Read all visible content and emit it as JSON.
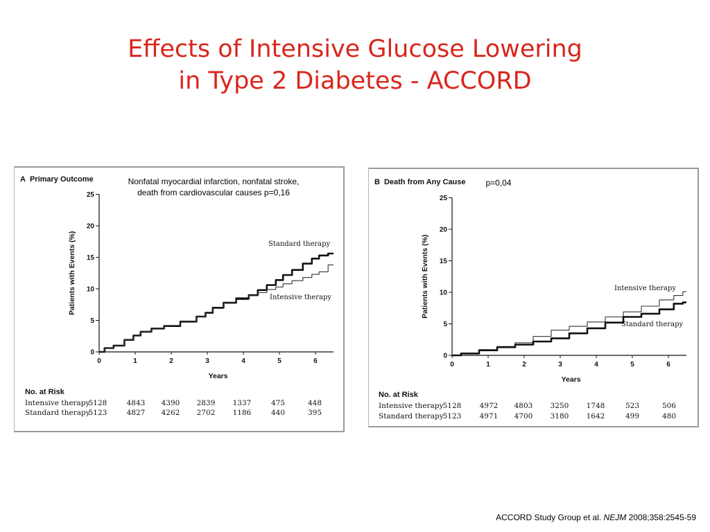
{
  "title_line1": "Effects of Intensive Glucose Lowering",
  "title_line2": "in Type 2 Diabetes - ACCORD",
  "citation": {
    "authors": "ACCORD Study Group  et al.",
    "journal": "NEJM",
    "ref": "2008;358:2545-59"
  },
  "chart_data": [
    {
      "type": "line",
      "panel_letter": "A",
      "panel_title": "Primary Outcome",
      "annotation_line1": "Nonfatal myocardial infarction, nonfatal stroke,",
      "annotation_line2": "death from cardiovascular causes  p=0,16",
      "xlabel": "Years",
      "ylabel": "Patients with Events (%)",
      "xlim": [
        0,
        6.5
      ],
      "ylim": [
        0,
        25
      ],
      "xticks": [
        "0",
        "1",
        "2",
        "3",
        "4",
        "5",
        "6"
      ],
      "yticks": [
        "0",
        "5",
        "10",
        "15",
        "20",
        "25"
      ],
      "series": [
        {
          "name": "Standard therapy",
          "color": "#111111",
          "weight": "thick",
          "x": [
            0,
            0.3,
            0.5,
            0.9,
            1.0,
            1.3,
            1.6,
            2.0,
            2.5,
            2.9,
            3.0,
            3.3,
            3.6,
            4.0,
            4.3,
            4.5,
            4.8,
            5.0,
            5.2,
            5.5,
            5.8,
            6.0,
            6.2,
            6.5
          ],
          "y": [
            0,
            0.6,
            1.0,
            1.9,
            2.6,
            3.2,
            3.7,
            4.1,
            4.8,
            5.6,
            6.2,
            7.0,
            7.8,
            8.5,
            9.0,
            9.8,
            10.6,
            11.4,
            12.2,
            13.0,
            14.0,
            14.8,
            15.3,
            15.6
          ]
        },
        {
          "name": "Intensive therapy",
          "color": "#333333",
          "weight": "thin",
          "x": [
            0,
            0.3,
            0.5,
            0.9,
            1.0,
            1.3,
            1.6,
            2.0,
            2.5,
            2.9,
            3.0,
            3.3,
            3.6,
            4.0,
            4.3,
            4.5,
            4.8,
            5.0,
            5.2,
            5.5,
            5.8,
            6.0,
            6.2,
            6.5
          ],
          "y": [
            0,
            0.6,
            1.0,
            1.9,
            2.6,
            3.2,
            3.7,
            4.2,
            4.9,
            5.6,
            6.1,
            6.9,
            7.7,
            8.3,
            8.9,
            9.4,
            9.9,
            10.3,
            10.8,
            11.3,
            11.8,
            12.3,
            12.7,
            13.8
          ]
        }
      ],
      "risk_header": "No. at Risk",
      "risk_rows": [
        {
          "label": "Intensive therapy",
          "values": [
            "5128",
            "4843",
            "4390",
            "2839",
            "1337",
            "475",
            "448"
          ]
        },
        {
          "label": "Standard therapy",
          "values": [
            "5123",
            "4827",
            "4262",
            "2702",
            "1186",
            "440",
            "395"
          ]
        }
      ]
    },
    {
      "type": "line",
      "panel_letter": "B",
      "panel_title": "Death from Any Cause",
      "annotation_line1": "p=0,04",
      "annotation_line2": "",
      "xlabel": "Years",
      "ylabel": "Patients with Events (%)",
      "xlim": [
        0,
        6.5
      ],
      "ylim": [
        0,
        25
      ],
      "xticks": [
        "0",
        "1",
        "2",
        "3",
        "4",
        "5",
        "6"
      ],
      "yticks": [
        "0",
        "5",
        "10",
        "15",
        "20",
        "25"
      ],
      "series": [
        {
          "name": "Intensive therapy",
          "color": "#333333",
          "weight": "thin",
          "x": [
            0,
            0.5,
            1.0,
            1.5,
            2.0,
            2.5,
            3.0,
            3.5,
            4.0,
            4.5,
            5.0,
            5.5,
            6.0,
            6.3,
            6.5
          ],
          "y": [
            0,
            0.3,
            0.9,
            1.4,
            2.0,
            3.0,
            4.0,
            4.6,
            5.3,
            6.1,
            6.9,
            7.8,
            8.8,
            9.5,
            10.1
          ]
        },
        {
          "name": "Standard therapy",
          "color": "#111111",
          "weight": "thick",
          "x": [
            0,
            0.5,
            1.0,
            1.5,
            2.0,
            2.5,
            3.0,
            3.5,
            4.0,
            4.5,
            5.0,
            5.5,
            6.0,
            6.3,
            6.5
          ],
          "y": [
            0,
            0.3,
            0.8,
            1.3,
            1.7,
            2.2,
            2.7,
            3.5,
            4.3,
            5.2,
            6.1,
            6.6,
            7.3,
            8.2,
            8.4
          ]
        }
      ],
      "risk_header": "No. at Risk",
      "risk_rows": [
        {
          "label": "Intensive therapy",
          "values": [
            "5128",
            "4972",
            "4803",
            "3250",
            "1748",
            "523",
            "506"
          ]
        },
        {
          "label": "Standard therapy",
          "values": [
            "5123",
            "4971",
            "4700",
            "3180",
            "1642",
            "499",
            "480"
          ]
        }
      ]
    }
  ]
}
